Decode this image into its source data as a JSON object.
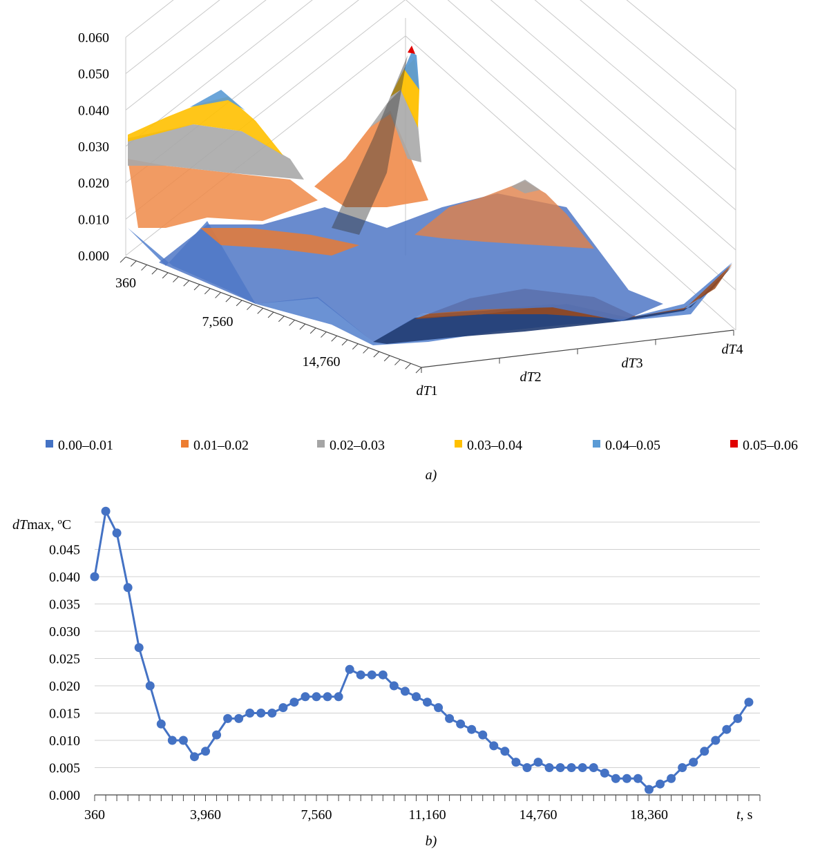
{
  "chart_data": [
    {
      "type": "surface",
      "panel_label": "a)",
      "z_ticks": [
        "0.000",
        "0.010",
        "0.020",
        "0.030",
        "0.040",
        "0.050",
        "0.060"
      ],
      "zlim": [
        0,
        0.06
      ],
      "time_tick_labels": [
        "360",
        "7,560",
        "14,760"
      ],
      "series_axis_labels": [
        {
          "prefix": "d",
          "italic": "T",
          "suffix": "1"
        },
        {
          "prefix": "d",
          "italic": "T",
          "suffix": "2"
        },
        {
          "prefix": "d",
          "italic": "T",
          "suffix": "3"
        },
        {
          "prefix": "d",
          "italic": "T",
          "suffix": "4"
        }
      ],
      "legend": [
        {
          "label": "0.00–0.01",
          "color": "#4472c4"
        },
        {
          "label": "0.01–0.02",
          "color": "#ed7d31"
        },
        {
          "label": "0.02–0.03",
          "color": "#a5a5a5"
        },
        {
          "label": "0.03–0.04",
          "color": "#ffc000"
        },
        {
          "label": "0.04–0.05",
          "color": "#5b9bd5"
        },
        {
          "label": "0.05–0.06",
          "color": "#e00000"
        }
      ],
      "legend_placement": "bottom",
      "grid": true
    },
    {
      "type": "line",
      "panel_label": "b)",
      "ylabel": {
        "italic": "dT",
        "rest": "max, ºC"
      },
      "xlabel": {
        "italic": "t",
        "rest": ", s"
      },
      "ylim": [
        0,
        0.05
      ],
      "y_ticks": [
        "0.000",
        "0.005",
        "0.010",
        "0.015",
        "0.020",
        "0.025",
        "0.030",
        "0.035",
        "0.040",
        "0.045"
      ],
      "x_ticks": [
        {
          "label": "360",
          "t": 360
        },
        {
          "label": "3,960",
          "t": 3960
        },
        {
          "label": "7,560",
          "t": 7560
        },
        {
          "label": "11,160",
          "t": 11160
        },
        {
          "label": "14,760",
          "t": 14760
        },
        {
          "label": "18,360",
          "t": 18360
        }
      ],
      "xlim": [
        360,
        21960
      ],
      "x_step": 360,
      "grid": true,
      "color": "#4472c4",
      "series": [
        {
          "values": [
            0.04,
            0.052,
            0.048,
            0.038,
            0.027,
            0.02,
            0.013,
            0.01,
            0.01,
            0.007,
            0.008,
            0.011,
            0.014,
            0.014,
            0.015,
            0.015,
            0.015,
            0.016,
            0.017,
            0.018,
            0.018,
            0.018,
            0.018,
            0.023,
            0.022,
            0.022,
            0.022,
            0.02,
            0.019,
            0.018,
            0.017,
            0.016,
            0.014,
            0.013,
            0.012,
            0.011,
            0.009,
            0.008,
            0.006,
            0.005,
            0.006,
            0.005,
            0.005,
            0.005,
            0.005,
            0.005,
            0.004,
            0.003,
            0.003,
            0.003,
            0.001,
            0.002,
            0.003,
            0.005,
            0.006,
            0.008,
            0.01,
            0.012,
            0.014,
            0.017
          ]
        }
      ]
    }
  ]
}
